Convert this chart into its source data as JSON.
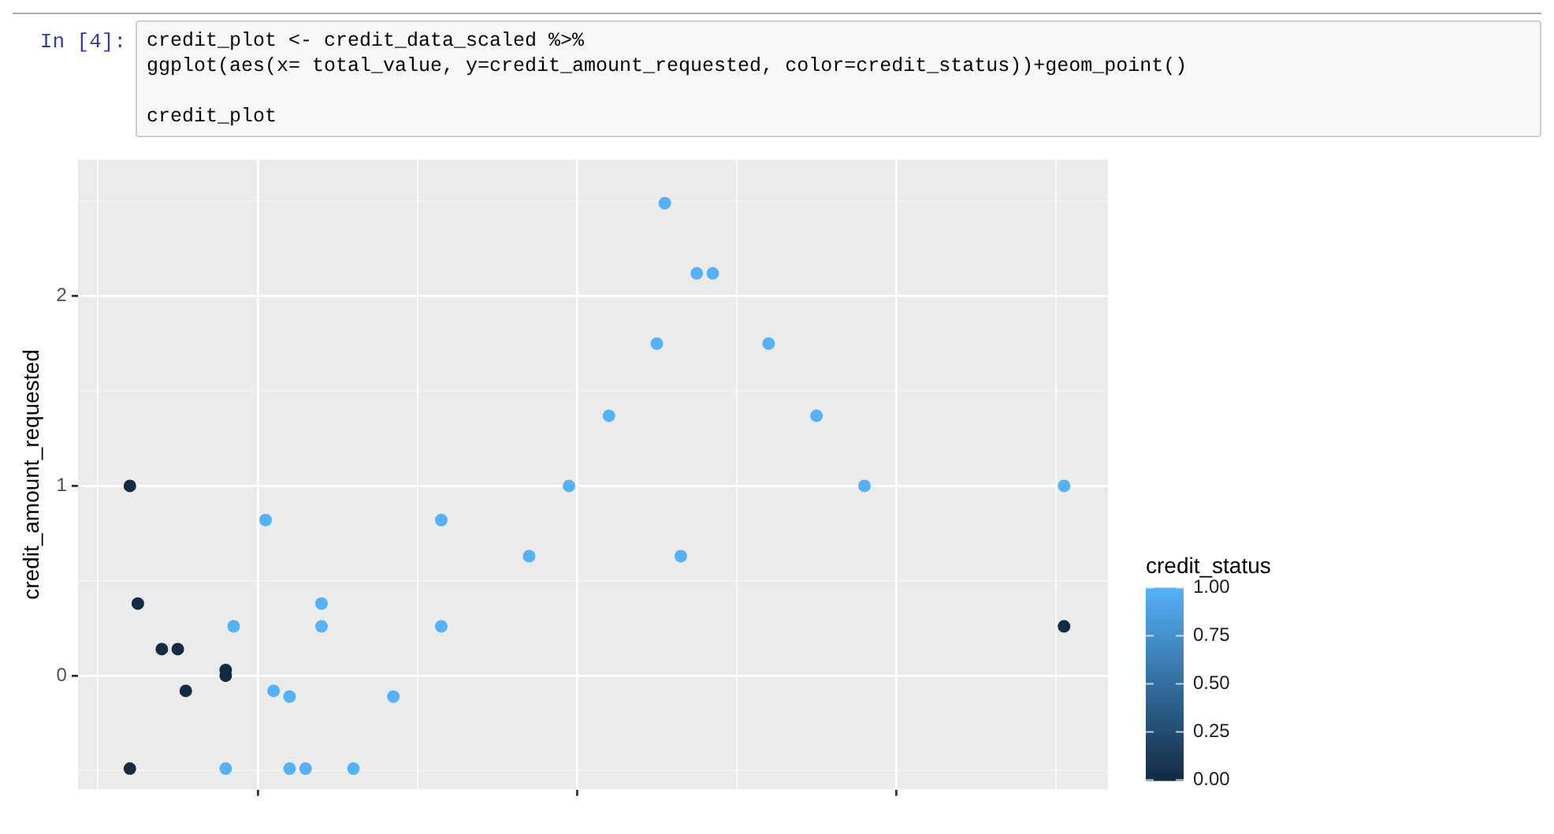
{
  "chart_data": {
    "type": "scatter",
    "annotations": [
      "In [4]:",
      "credit_plot <- credit_data_scaled %>%",
      "ggplot(aes(x= total_value, y=credit_amount_requested, color=credit_status))+geom_point()",
      "credit_plot"
    ],
    "ylabel": "credit_amount_requested",
    "clabel": "credit_status",
    "clim": [
      0,
      1
    ],
    "cticks": [
      {
        "value": 0,
        "label": "0.00"
      },
      {
        "value": 0.25,
        "label": "0.25"
      },
      {
        "value": 0.5,
        "label": "0.50"
      },
      {
        "value": 0.75,
        "label": "0.75"
      },
      {
        "value": 1,
        "label": "1.00"
      }
    ],
    "categories": [
      null,
      null,
      null,
      null,
      null,
      null,
      null,
      null,
      null,
      null,
      null,
      null,
      null,
      null,
      null,
      null,
      null,
      null,
      null,
      null,
      null,
      null,
      null,
      null,
      null,
      null,
      null,
      null,
      null,
      null,
      null,
      null,
      null,
      null,
      null,
      null,
      null,
      null,
      null,
      null,
      null,
      null,
      null,
      null,
      null,
      null,
      null,
      null,
      null,
      null,
      null,
      null,
      null,
      null,
      null,
      null,
      null,
      null,
      null,
      null,
      null,
      null,
      null,
      null,
      null,
      null,
      null,
      null,
      null,
      null,
      null,
      null,
      null,
      null,
      null,
      null,
      null,
      null,
      null,
      null,
      null,
      null,
      null,
      null,
      null,
      null,
      null,
      null,
      null,
      null,
      null,
      null,
      null,
      null,
      null,
      null,
      null,
      null,
      null,
      null,
      null,
      null,
      null,
      null,
      null,
      null,
      null,
      null,
      null,
      null,
      null,
      null,
      null,
      null,
      null,
      null,
      null,
      null,
      null,
      null,
      null,
      null,
      null,
      null,
      null,
      null,
      null,
      null,
      null
    ],
    "series": [
      {
        "color": "#132b43",
        "values": [
          null,
          null,
          null,
          null,
          null,
          null,
          1.0,
          0.38,
          null,
          null,
          0.14,
          null,
          0.14,
          -0.08,
          null,
          null,
          null,
          null,
          0.03,
          null,
          null,
          null,
          null,
          null,
          null,
          null,
          null,
          null,
          null,
          null,
          null,
          null,
          null,
          null,
          null,
          null,
          null,
          null,
          null,
          null,
          null,
          null,
          null,
          null,
          null,
          null,
          null,
          null,
          null,
          null,
          null,
          null,
          null,
          null,
          null,
          null,
          null,
          null,
          null,
          null,
          null,
          null,
          null,
          null,
          null,
          null,
          null,
          null,
          null,
          null,
          null,
          null,
          null,
          null,
          null,
          null,
          null,
          null,
          null,
          null,
          null,
          null,
          null,
          null,
          null,
          null,
          null,
          null,
          null,
          null,
          null,
          null,
          null,
          null,
          null,
          null,
          null,
          null,
          null,
          null,
          null,
          null,
          null,
          null,
          null,
          null,
          null,
          null,
          null,
          null,
          null,
          null,
          null,
          null,
          null,
          null,
          null,
          null,
          null,
          null,
          null,
          null,
          null,
          0.26,
          null,
          null,
          null,
          null,
          null
        ]
      },
      {
        "color": "#132b43",
        "values": [
          null,
          null,
          null,
          null,
          null,
          null,
          -0.49,
          null,
          null,
          null,
          null,
          null,
          null,
          null,
          null,
          null,
          null,
          null,
          0.0,
          null,
          null,
          null,
          null,
          null,
          null,
          null,
          null,
          null,
          null,
          null,
          null,
          null,
          null,
          null,
          null,
          null,
          null,
          null,
          null,
          null,
          null,
          null,
          null,
          null,
          null,
          null,
          null,
          null,
          null,
          null,
          null,
          null,
          null,
          null,
          null,
          null,
          null,
          null,
          null,
          null,
          null,
          null,
          null,
          null,
          null,
          null,
          null,
          null,
          null,
          null,
          null,
          null,
          null,
          null,
          null,
          null,
          null,
          null,
          null,
          null,
          null,
          null,
          null,
          null,
          null,
          null,
          null,
          null,
          null,
          null,
          null,
          null,
          null,
          null,
          null,
          null,
          null,
          null,
          null,
          null,
          null,
          null,
          null,
          null,
          null,
          null,
          null,
          null,
          null,
          null,
          null,
          null,
          null,
          null,
          null,
          null,
          null,
          null,
          null,
          null,
          null,
          null,
          null,
          null,
          null,
          null,
          null,
          null,
          null
        ]
      },
      {
        "color": "#56b1f7",
        "values": [
          null,
          null,
          null,
          null,
          null,
          null,
          null,
          null,
          null,
          null,
          null,
          null,
          null,
          null,
          null,
          null,
          null,
          null,
          -0.49,
          0.26,
          null,
          null,
          null,
          0.82,
          -0.08,
          null,
          -0.11,
          null,
          -0.49,
          null,
          0.38,
          null,
          null,
          null,
          -0.49,
          null,
          null,
          null,
          null,
          -0.11,
          null,
          null,
          null,
          null,
          null,
          0.82,
          null,
          null,
          null,
          null,
          null,
          null,
          null,
          null,
          null,
          null,
          0.63,
          null,
          null,
          null,
          null,
          1.0,
          null,
          null,
          null,
          null,
          1.37,
          null,
          null,
          null,
          null,
          null,
          1.75,
          2.49,
          null,
          0.63,
          null,
          2.12,
          null,
          2.12,
          null,
          null,
          null,
          null,
          null,
          null,
          1.75,
          null,
          null,
          null,
          null,
          null,
          1.37,
          null,
          null,
          null,
          null,
          null,
          1.0,
          null,
          null,
          null,
          null,
          null,
          null,
          null,
          null,
          null,
          null,
          null,
          null,
          null,
          null,
          null,
          null,
          null,
          null,
          null,
          null,
          null,
          null,
          null,
          null,
          1.0,
          null,
          null,
          null,
          null,
          null
        ]
      },
      {
        "color": "#56b1f7",
        "values": [
          null,
          null,
          null,
          null,
          null,
          null,
          null,
          null,
          null,
          null,
          null,
          null,
          null,
          null,
          null,
          null,
          null,
          null,
          null,
          null,
          null,
          null,
          null,
          null,
          null,
          null,
          -0.49,
          null,
          null,
          null,
          0.26,
          null,
          null,
          null,
          null,
          null,
          null,
          null,
          null,
          null,
          null,
          null,
          null,
          null,
          null,
          0.26,
          null,
          null,
          null,
          null,
          null,
          null,
          null,
          null,
          null,
          null,
          null,
          null,
          null,
          null,
          null,
          null,
          null,
          null,
          null,
          null,
          null,
          null,
          null,
          null,
          null,
          null,
          null,
          null,
          null,
          null,
          null,
          null,
          null,
          null,
          null,
          null,
          null,
          null,
          null,
          null,
          null,
          null,
          null,
          null,
          null,
          null,
          null,
          null,
          null,
          null,
          null,
          null,
          null,
          null,
          null,
          null,
          null,
          null,
          null,
          null,
          null,
          null,
          null,
          null,
          null,
          null,
          null,
          null,
          null,
          null,
          null,
          null,
          null,
          null,
          null,
          null,
          null,
          null,
          null,
          null,
          null,
          null,
          null
        ]
      }
    ],
    "ylim": [
      -0.6,
      2.72
    ],
    "yticks": [
      0,
      1,
      2
    ],
    "tick_labels": "y",
    "grid": true,
    "marker": "circle"
  }
}
